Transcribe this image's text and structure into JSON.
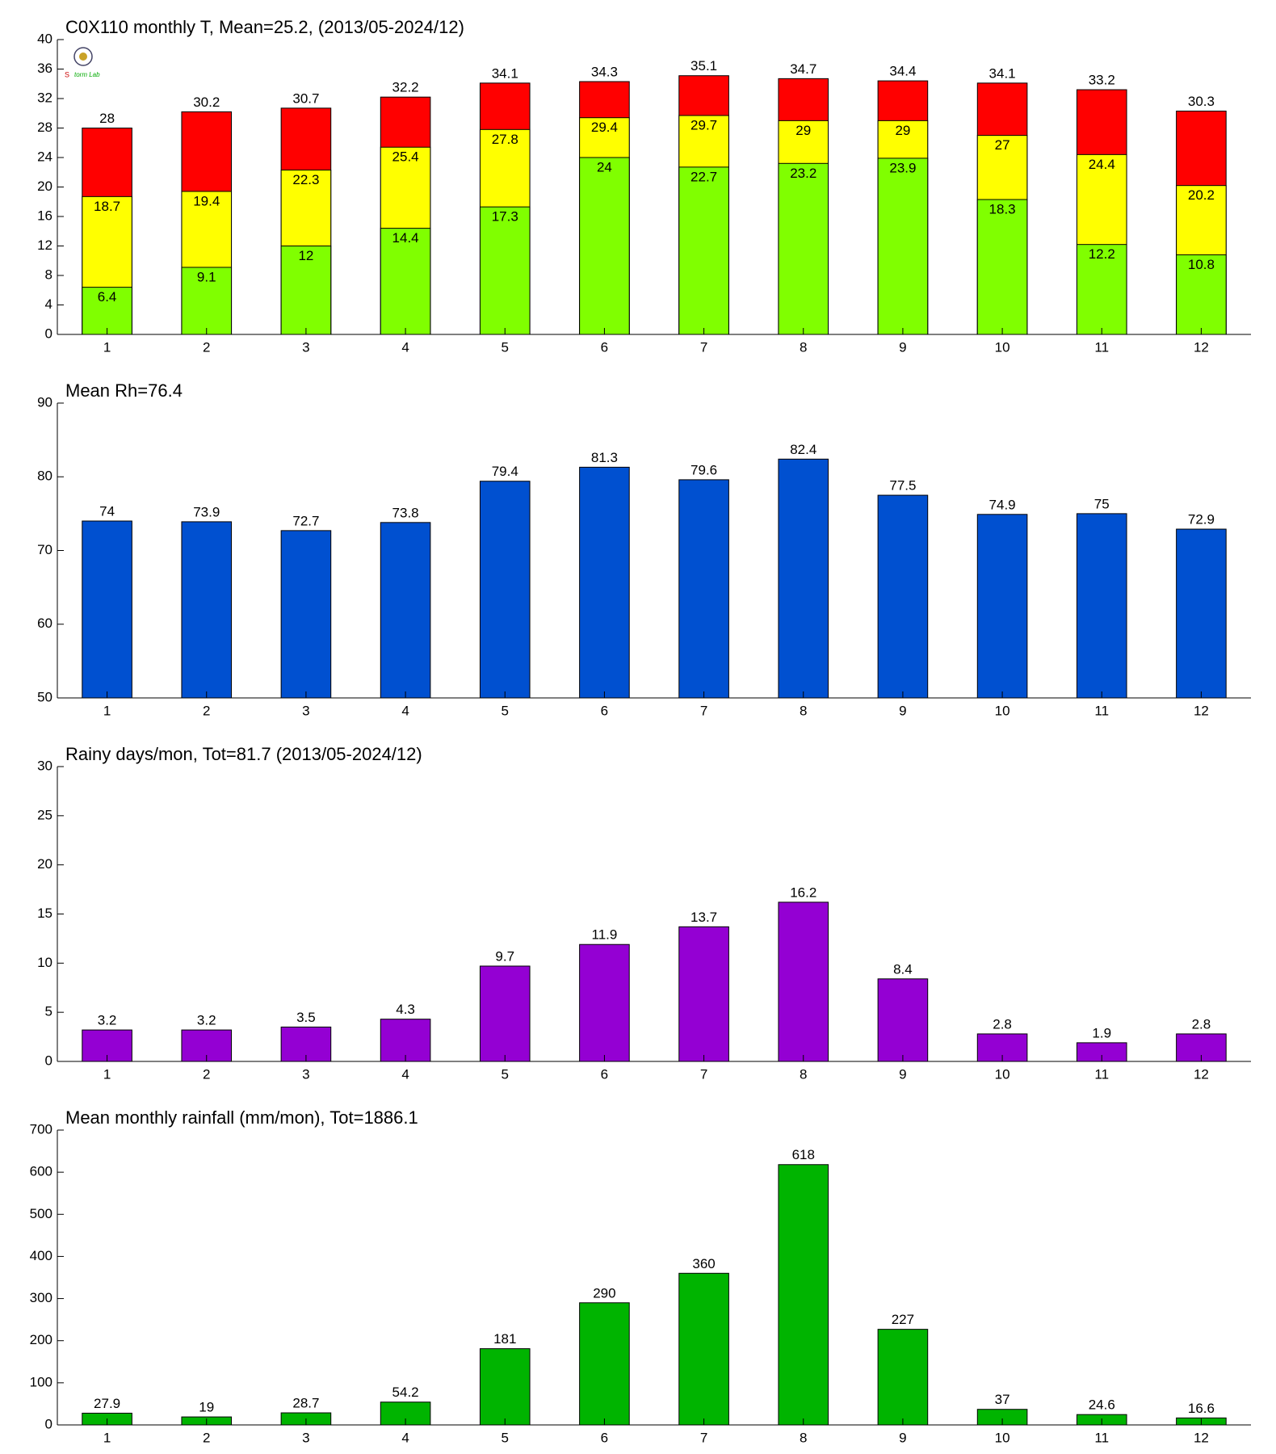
{
  "chart_data": [
    {
      "type": "bar",
      "title": "C0X110 monthly T, Mean=25.2, (2013/05-2024/12)",
      "categories": [
        "1",
        "2",
        "3",
        "4",
        "5",
        "6",
        "7",
        "8",
        "9",
        "10",
        "11",
        "12"
      ],
      "series": [
        {
          "color": "#80ff00",
          "values": [
            6.4,
            9.1,
            12,
            14.4,
            17.3,
            24,
            22.7,
            23.2,
            23.9,
            18.3,
            12.2,
            10.8
          ]
        },
        {
          "color": "#ffff00",
          "values": [
            18.7,
            19.4,
            22.3,
            25.4,
            27.8,
            29.4,
            29.7,
            29,
            29,
            27,
            24.4,
            20.2
          ]
        },
        {
          "color": "#ff0000",
          "values": [
            28,
            30.2,
            30.7,
            32.2,
            34.1,
            34.3,
            35.1,
            34.7,
            34.4,
            34.1,
            33.2,
            30.3
          ]
        }
      ],
      "ylim": [
        0,
        40
      ],
      "yticks": [
        0,
        4,
        8,
        12,
        16,
        20,
        24,
        28,
        32,
        36,
        40
      ],
      "grid": false
    },
    {
      "type": "bar",
      "title": "Mean Rh=76.4",
      "categories": [
        "1",
        "2",
        "3",
        "4",
        "5",
        "6",
        "7",
        "8",
        "9",
        "10",
        "11",
        "12"
      ],
      "series": [
        {
          "color": "#0050d0",
          "values": [
            74,
            73.9,
            72.7,
            73.8,
            79.4,
            81.3,
            79.6,
            82.4,
            77.5,
            74.9,
            75,
            72.9
          ]
        }
      ],
      "ylim": [
        50,
        90
      ],
      "yticks": [
        50,
        60,
        70,
        80,
        90
      ],
      "grid": false
    },
    {
      "type": "bar",
      "title": "Rainy days/mon, Tot=81.7 (2013/05-2024/12)",
      "categories": [
        "1",
        "2",
        "3",
        "4",
        "5",
        "6",
        "7",
        "8",
        "9",
        "10",
        "11",
        "12"
      ],
      "series": [
        {
          "color": "#9400d3",
          "values": [
            3.2,
            3.2,
            3.5,
            4.3,
            9.7,
            11.9,
            13.7,
            16.2,
            8.4,
            2.8,
            1.9,
            2.8
          ]
        }
      ],
      "ylim": [
        0,
        30
      ],
      "yticks": [
        0,
        5,
        10,
        15,
        20,
        25,
        30
      ],
      "grid": false
    },
    {
      "type": "bar",
      "title": "Mean monthly rainfall (mm/mon), Tot=1886.1",
      "categories": [
        "1",
        "2",
        "3",
        "4",
        "5",
        "6",
        "7",
        "8",
        "9",
        "10",
        "11",
        "12"
      ],
      "series": [
        {
          "color": "#00b400",
          "values": [
            27.9,
            19,
            28.7,
            54.2,
            181,
            290,
            360,
            618,
            227,
            37,
            24.6,
            16.6
          ]
        }
      ],
      "ylim": [
        0,
        700
      ],
      "yticks": [
        0,
        100,
        200,
        300,
        400,
        500,
        600,
        700
      ],
      "grid": false
    }
  ]
}
